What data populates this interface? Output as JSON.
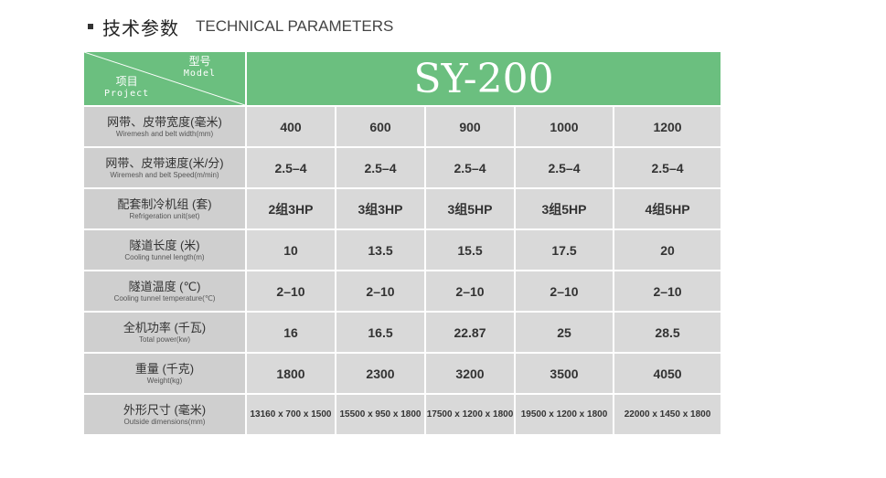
{
  "header": {
    "title_cn": "技术参数",
    "title_en": "TECHNICAL PARAMETERS"
  },
  "table": {
    "corner": {
      "model_cn": "型号",
      "model_en": "Model",
      "project_cn": "项目",
      "project_en": "Project"
    },
    "model": "SY-200",
    "rows": [
      {
        "cn": "网带、皮带宽度(毫米)",
        "en": "Wiremesh and belt width(mm)",
        "values": [
          "400",
          "600",
          "900",
          "1000",
          "1200"
        ]
      },
      {
        "cn": "网带、皮带速度(米/分)",
        "en": "Wiremesh and belt Speed(m/min)",
        "values": [
          "2.5–4",
          "2.5–4",
          "2.5–4",
          "2.5–4",
          "2.5–4"
        ]
      },
      {
        "cn": "配套制冷机组 (套)",
        "en": "Refrigeration unit(set)",
        "values": [
          "2组3HP",
          "3组3HP",
          "3组5HP",
          "3组5HP",
          "4组5HP"
        ]
      },
      {
        "cn": "隧道长度 (米)",
        "en": "Cooling tunnel length(m)",
        "values": [
          "10",
          "13.5",
          "15.5",
          "17.5",
          "20"
        ]
      },
      {
        "cn": "隧道温度 (℃)",
        "en": "Cooling tunnel temperature(℃)",
        "values": [
          "2–10",
          "2–10",
          "2–10",
          "2–10",
          "2–10"
        ]
      },
      {
        "cn": "全机功率 (千瓦)",
        "en": "Total power(kw)",
        "values": [
          "16",
          "16.5",
          "22.87",
          "25",
          "28.5"
        ]
      },
      {
        "cn": "重量 (千克)",
        "en": "Weight(kg)",
        "values": [
          "1800",
          "2300",
          "3200",
          "3500",
          "4050"
        ]
      },
      {
        "cn": "外形尺寸 (毫米)",
        "en": "Outside dimensions(mm)",
        "values": [
          "13160 x 700 x 1500",
          "15500 x 950 x 1800",
          "17500 x 1200 x 1800",
          "19500 x 1200 x 1800",
          "22000 x 1450 x 1800"
        ]
      }
    ]
  }
}
